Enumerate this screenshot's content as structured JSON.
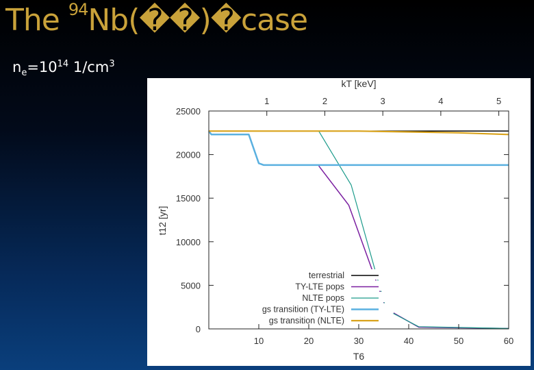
{
  "slide": {
    "title_prefix": "The ",
    "title_mass": "94",
    "title_rest": "Nb(��)�case",
    "density_base": "n",
    "density_sub": "e",
    "density_eq": "=10",
    "density_exp": "14",
    "density_unit": " 1/cm",
    "density_unit_exp": "3"
  },
  "chart_data": {
    "type": "line",
    "xlabel": "T6",
    "ylabel": "t12 [yr]",
    "x2label": "kT [keV]",
    "xlim": [
      0,
      60
    ],
    "ylim": [
      0,
      25000
    ],
    "x2lim": [
      0,
      5.17
    ],
    "x_ticks": [
      10,
      20,
      30,
      40,
      50,
      60
    ],
    "y_ticks": [
      0,
      5000,
      10000,
      15000,
      20000,
      25000
    ],
    "x2_ticks": [
      1,
      2,
      3,
      4,
      5
    ],
    "grid": false,
    "legend_position": "bottom-right",
    "series": [
      {
        "name": "terrestrial",
        "color": "#000000",
        "width": 1.5,
        "points": [
          [
            25,
            22700
          ],
          [
            60,
            22700
          ]
        ]
      },
      {
        "name": "TY-LTE pops",
        "color": "#7a1fa0",
        "width": 1.5,
        "points": [
          [
            22,
            18700
          ],
          [
            28,
            14200
          ],
          [
            35.5,
            2300
          ],
          [
            42,
            200
          ],
          [
            60,
            50
          ]
        ]
      },
      {
        "name": "NLTE pops",
        "color": "#1a9a8a",
        "width": 1.2,
        "points": [
          [
            22,
            22700
          ],
          [
            28.5,
            16500
          ],
          [
            35.5,
            2200
          ],
          [
            42,
            250
          ],
          [
            60,
            50
          ]
        ]
      },
      {
        "name": "gs transition (TY-LTE)",
        "color": "#5ab0e0",
        "width": 2.5,
        "points": [
          [
            0,
            22700
          ],
          [
            0.5,
            22300
          ],
          [
            8,
            22300
          ],
          [
            10,
            19000
          ],
          [
            11,
            18800
          ],
          [
            60,
            18800
          ]
        ]
      },
      {
        "name": "gs transition (NLTE)",
        "color": "#d9a21a",
        "width": 2.2,
        "points": [
          [
            0,
            22700
          ],
          [
            30,
            22700
          ],
          [
            40,
            22600
          ],
          [
            50,
            22500
          ],
          [
            60,
            22300
          ]
        ]
      }
    ]
  }
}
